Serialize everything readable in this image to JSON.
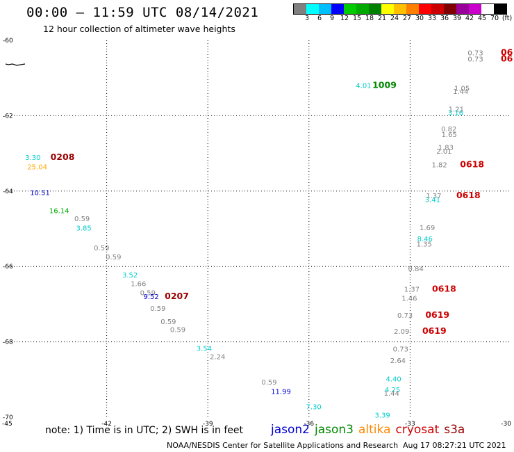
{
  "header": {
    "title": "00:00 – 11:59 UTC 08/14/2021",
    "subtitle": "12 hour collection of altimeter wave heights"
  },
  "colorbar": {
    "colors": [
      "#808080",
      "#00ffff",
      "#00bfff",
      "#0000ff",
      "#00cc00",
      "#00aa00",
      "#008000",
      "#ffff00",
      "#ffc000",
      "#ff8000",
      "#ff0000",
      "#cc0000",
      "#800000",
      "#990099",
      "#cc00cc",
      "#ffffff",
      "#000000"
    ],
    "labels": [
      "3",
      "6",
      "9",
      "12",
      "15",
      "18",
      "21",
      "24",
      "27",
      "30",
      "33",
      "36",
      "39",
      "42",
      "45",
      "70",
      "(ft)"
    ]
  },
  "footer": {
    "note": "note: 1) Time is in UTC; 2) SWH is in feet",
    "credit": "NOAA/NESDIS Center for Satellite Applications and Research",
    "timestamp": "Aug 17 08:27:21 UTC 2021"
  },
  "legend": [
    {
      "name": "jason2",
      "color": "#0000cc"
    },
    {
      "name": "jason3",
      "color": "#008800"
    },
    {
      "name": "altika",
      "color": "#ff8800"
    },
    {
      "name": "cryosat",
      "color": "#cc0000"
    },
    {
      "name": "s3a",
      "color": "#990000"
    }
  ],
  "chart_data": {
    "type": "scatter",
    "xlim": [
      -45,
      -30
    ],
    "ylim": [
      -70,
      -60
    ],
    "x_ticks": [
      "-45",
      "-42",
      "-39",
      "-36",
      "-33",
      "-30"
    ],
    "y_ticks": [
      "-60",
      "-62",
      "-64",
      "-66",
      "-68",
      "-70"
    ],
    "grid": true,
    "annotations": [
      {
        "text": "0.73",
        "lon": -31.06,
        "lat": -60.32,
        "color": "#808080"
      },
      {
        "text": "06",
        "lon": -30.13,
        "lat": -60.32,
        "color": "#cc0000"
      },
      {
        "text": "0.73",
        "lon": -31.06,
        "lat": -60.49,
        "color": "#808080"
      },
      {
        "text": "06",
        "lon": -30.13,
        "lat": -60.49,
        "color": "#cc0000"
      },
      {
        "text": "4.01",
        "lon": -34.38,
        "lat": -61.19,
        "color": "#00cccc"
      },
      {
        "text": "1009",
        "lon": -33.76,
        "lat": -61.19,
        "color": "#008800"
      },
      {
        "text": "1.05",
        "lon": -31.46,
        "lat": -61.26,
        "color": "#808080"
      },
      {
        "text": "1.44",
        "lon": -31.5,
        "lat": -61.35,
        "color": "#808080"
      },
      {
        "text": "1.21",
        "lon": -31.63,
        "lat": -61.82,
        "color": "#808080"
      },
      {
        "text": "3.16",
        "lon": -31.65,
        "lat": -61.91,
        "color": "#00cccc"
      },
      {
        "text": "0.82",
        "lon": -31.85,
        "lat": -62.34,
        "color": "#808080"
      },
      {
        "text": "1.65",
        "lon": -31.84,
        "lat": -62.49,
        "color": "#808080"
      },
      {
        "text": "1.83",
        "lon": -31.94,
        "lat": -62.83,
        "color": "#808080"
      },
      {
        "text": "2.01",
        "lon": -31.99,
        "lat": -62.93,
        "color": "#808080"
      },
      {
        "text": "1.82",
        "lon": -32.13,
        "lat": -63.29,
        "color": "#808080"
      },
      {
        "text": "0618",
        "lon": -31.16,
        "lat": -63.29,
        "color": "#cc0000"
      },
      {
        "text": "1.37",
        "lon": -32.3,
        "lat": -64.11,
        "color": "#808080"
      },
      {
        "text": "0618",
        "lon": -31.27,
        "lat": -64.11,
        "color": "#cc0000"
      },
      {
        "text": "3.41",
        "lon": -32.33,
        "lat": -64.22,
        "color": "#00cccc"
      },
      {
        "text": "1.69",
        "lon": -32.49,
        "lat": -64.96,
        "color": "#808080"
      },
      {
        "text": "8.46",
        "lon": -32.56,
        "lat": -65.26,
        "color": "#00cccc"
      },
      {
        "text": "1.35",
        "lon": -32.58,
        "lat": -65.4,
        "color": "#808080"
      },
      {
        "text": "0.84",
        "lon": -32.83,
        "lat": -66.05,
        "color": "#808080"
      },
      {
        "text": "1.37",
        "lon": -32.95,
        "lat": -66.6,
        "color": "#808080"
      },
      {
        "text": "0618",
        "lon": -31.99,
        "lat": -66.6,
        "color": "#cc0000"
      },
      {
        "text": "1.46",
        "lon": -33.02,
        "lat": -66.84,
        "color": "#808080"
      },
      {
        "text": "0.73",
        "lon": -33.15,
        "lat": -67.29,
        "color": "#808080"
      },
      {
        "text": "0619",
        "lon": -32.19,
        "lat": -67.29,
        "color": "#cc0000"
      },
      {
        "text": "2.09",
        "lon": -33.25,
        "lat": -67.71,
        "color": "#808080"
      },
      {
        "text": "0619",
        "lon": -32.28,
        "lat": -67.71,
        "color": "#cc0000"
      },
      {
        "text": "0.73",
        "lon": -33.28,
        "lat": -68.18,
        "color": "#808080"
      },
      {
        "text": "2.64",
        "lon": -33.36,
        "lat": -68.49,
        "color": "#808080"
      },
      {
        "text": "4.40",
        "lon": -33.49,
        "lat": -68.98,
        "color": "#00cccc"
      },
      {
        "text": "4.25",
        "lon": -33.52,
        "lat": -69.26,
        "color": "#00cccc"
      },
      {
        "text": "1.44",
        "lon": -33.55,
        "lat": -69.35,
        "color": "#808080"
      },
      {
        "text": "3.39",
        "lon": -33.82,
        "lat": -69.94,
        "color": "#00cccc"
      },
      {
        "text": "3.30",
        "lon": -44.19,
        "lat": -63.1,
        "color": "#00cccc"
      },
      {
        "text": "0208",
        "lon": -43.31,
        "lat": -63.1,
        "color": "#990000"
      },
      {
        "text": "25.04",
        "lon": -44.06,
        "lat": -63.35,
        "color": "#ffaa00"
      },
      {
        "text": "10.51",
        "lon": -43.98,
        "lat": -64.03,
        "color": "#0000cc"
      },
      {
        "text": "16.14",
        "lon": -43.41,
        "lat": -64.51,
        "color": "#00aa00"
      },
      {
        "text": "0.59",
        "lon": -42.73,
        "lat": -64.72,
        "color": "#808080"
      },
      {
        "text": "3.85",
        "lon": -42.68,
        "lat": -64.97,
        "color": "#00cccc"
      },
      {
        "text": "0.59",
        "lon": -42.15,
        "lat": -65.5,
        "color": "#808080"
      },
      {
        "text": "0.59",
        "lon": -41.8,
        "lat": -65.74,
        "color": "#808080"
      },
      {
        "text": "3.52",
        "lon": -41.31,
        "lat": -66.22,
        "color": "#00cccc"
      },
      {
        "text": "1.66",
        "lon": -41.06,
        "lat": -66.45,
        "color": "#808080"
      },
      {
        "text": "0.59",
        "lon": -40.78,
        "lat": -66.69,
        "color": "#808080"
      },
      {
        "text": "9.52",
        "lon": -40.68,
        "lat": -66.79,
        "color": "#0000cc"
      },
      {
        "text": "0207",
        "lon": -39.92,
        "lat": -66.79,
        "color": "#990000"
      },
      {
        "text": "0.59",
        "lon": -40.48,
        "lat": -67.1,
        "color": "#808080"
      },
      {
        "text": "0.59",
        "lon": -40.17,
        "lat": -67.45,
        "color": "#808080"
      },
      {
        "text": "0.59",
        "lon": -39.89,
        "lat": -67.67,
        "color": "#808080"
      },
      {
        "text": "3.54",
        "lon": -39.11,
        "lat": -68.16,
        "color": "#00cccc"
      },
      {
        "text": "2.24",
        "lon": -38.71,
        "lat": -68.39,
        "color": "#808080"
      },
      {
        "text": "0.59",
        "lon": -37.18,
        "lat": -69.06,
        "color": "#808080"
      },
      {
        "text": "11.99",
        "lon": -36.83,
        "lat": -69.31,
        "color": "#0000cc"
      },
      {
        "text": "7.30",
        "lon": -35.86,
        "lat": -69.71,
        "color": "#00cccc"
      }
    ]
  }
}
